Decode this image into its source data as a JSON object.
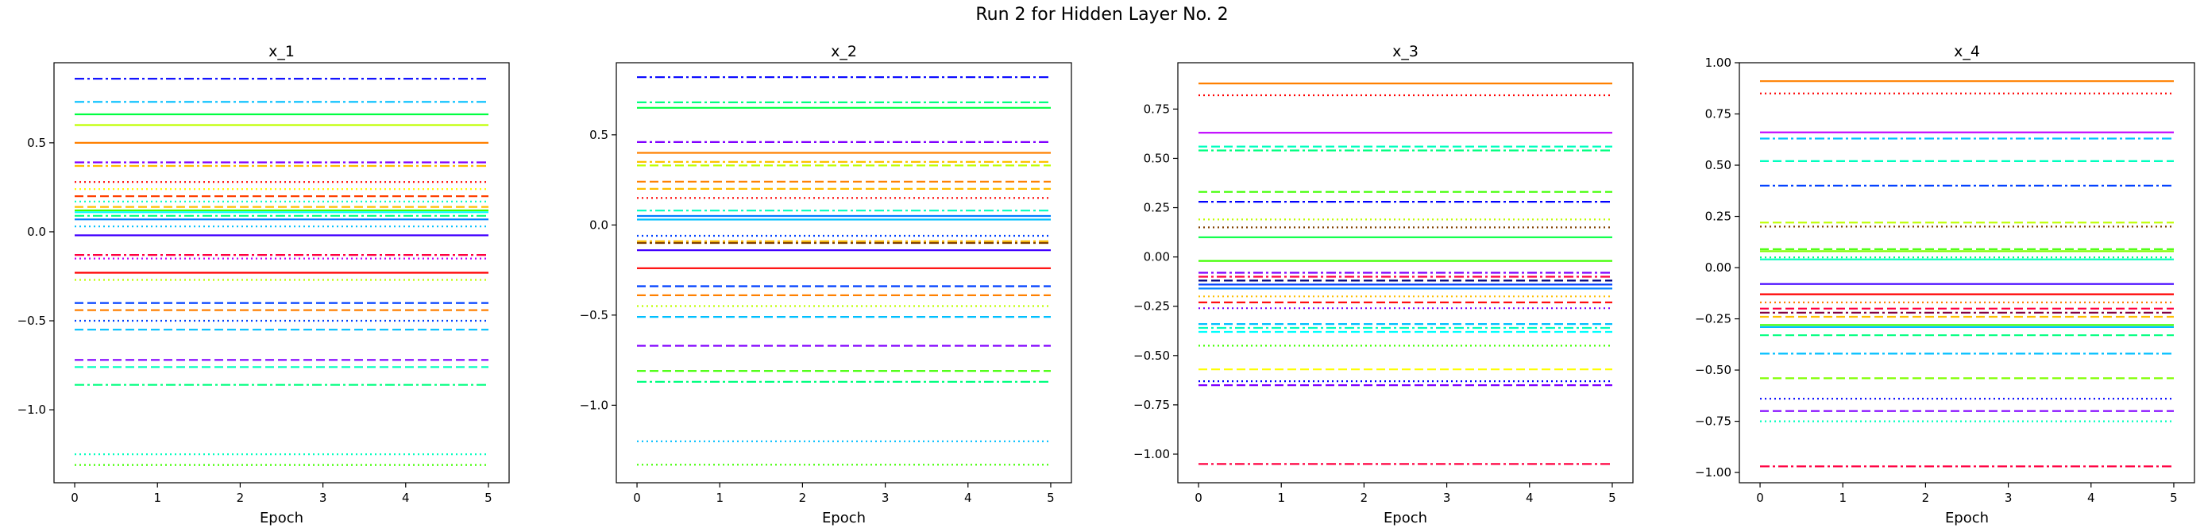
{
  "figure": {
    "suptitle": "Run 2 for Hidden Layer No. 2"
  },
  "chart_data": [
    {
      "type": "line",
      "title": "x_1",
      "xlabel": "Epoch",
      "ylabel": "",
      "xlim": [
        -0.25,
        5.25
      ],
      "ylim": [
        -1.41,
        0.95
      ],
      "xticks": [
        0,
        1,
        2,
        3,
        4,
        5
      ],
      "yticks": [
        -1.0,
        -0.5,
        0.0,
        0.5
      ],
      "ytick_labels": [
        "−1.0",
        "−0.5",
        "0.0",
        "0.5"
      ],
      "x": [
        0,
        1,
        2,
        3,
        4,
        5
      ],
      "series": [
        {
          "value": 0.86,
          "color": "#0000ff",
          "style": "dashdot"
        },
        {
          "value": 0.73,
          "color": "#00bfff",
          "style": "dashdot"
        },
        {
          "value": 0.66,
          "color": "#00ff40",
          "style": "solid"
        },
        {
          "value": 0.6,
          "color": "#bfff00",
          "style": "solid"
        },
        {
          "value": 0.5,
          "color": "#ff8000",
          "style": "solid"
        },
        {
          "value": 0.39,
          "color": "#8000ff",
          "style": "dashdot"
        },
        {
          "value": 0.37,
          "color": "#ffbf00",
          "style": "dashdot"
        },
        {
          "value": 0.28,
          "color": "#ff0000",
          "style": "dotted"
        },
        {
          "value": 0.24,
          "color": "#ffff00",
          "style": "dotted"
        },
        {
          "value": 0.2,
          "color": "#ff4000",
          "style": "dashed"
        },
        {
          "value": 0.17,
          "color": "#00ffbf",
          "style": "dotted"
        },
        {
          "value": 0.14,
          "color": "#ffbf00",
          "style": "dashed"
        },
        {
          "value": 0.12,
          "color": "#40ff00",
          "style": "solid"
        },
        {
          "value": 0.11,
          "color": "#00ffff",
          "style": "solid"
        },
        {
          "value": 0.09,
          "color": "#00ff80",
          "style": "dashdot"
        },
        {
          "value": 0.07,
          "color": "#0080ff",
          "style": "solid"
        },
        {
          "value": 0.03,
          "color": "#00bfff",
          "style": "dotted"
        },
        {
          "value": -0.02,
          "color": "#4000ff",
          "style": "solid"
        },
        {
          "value": -0.13,
          "color": "#ff0040",
          "style": "dashdot"
        },
        {
          "value": -0.15,
          "color": "#bf00ff",
          "style": "dotted"
        },
        {
          "value": -0.23,
          "color": "#ff0000",
          "style": "solid"
        },
        {
          "value": -0.27,
          "color": "#bfff00",
          "style": "dotted"
        },
        {
          "value": -0.4,
          "color": "#0040ff",
          "style": "dashed"
        },
        {
          "value": -0.44,
          "color": "#ff8000",
          "style": "dashed"
        },
        {
          "value": -0.5,
          "color": "#0040ff",
          "style": "dotted"
        },
        {
          "value": -0.55,
          "color": "#00bfff",
          "style": "dashed"
        },
        {
          "value": -0.72,
          "color": "#8000ff",
          "style": "dashed"
        },
        {
          "value": -0.76,
          "color": "#00ffbf",
          "style": "dashed"
        },
        {
          "value": -0.86,
          "color": "#00ff80",
          "style": "dashdot"
        },
        {
          "value": -1.25,
          "color": "#00ffbf",
          "style": "dotted"
        },
        {
          "value": -1.31,
          "color": "#40ff00",
          "style": "dotted"
        }
      ]
    },
    {
      "type": "line",
      "title": "x_2",
      "xlabel": "Epoch",
      "ylabel": "",
      "xlim": [
        -0.25,
        5.25
      ],
      "ylim": [
        -1.43,
        0.9
      ],
      "xticks": [
        0,
        1,
        2,
        3,
        4,
        5
      ],
      "yticks": [
        -1.0,
        -0.5,
        0.0,
        0.5
      ],
      "ytick_labels": [
        "−1.0",
        "−0.5",
        "0.0",
        "0.5"
      ],
      "x": [
        0,
        1,
        2,
        3,
        4,
        5
      ],
      "series": [
        {
          "value": 0.82,
          "color": "#0000ff",
          "style": "dashdot"
        },
        {
          "value": 0.68,
          "color": "#00ff80",
          "style": "dashdot"
        },
        {
          "value": 0.65,
          "color": "#00ff40",
          "style": "solid"
        },
        {
          "value": 0.46,
          "color": "#8000ff",
          "style": "dashdot"
        },
        {
          "value": 0.4,
          "color": "#ff8000",
          "style": "solid"
        },
        {
          "value": 0.35,
          "color": "#ffbf00",
          "style": "dashdot"
        },
        {
          "value": 0.33,
          "color": "#bfff00",
          "style": "dashed"
        },
        {
          "value": 0.24,
          "color": "#ff8000",
          "style": "dashed"
        },
        {
          "value": 0.2,
          "color": "#ffbf00",
          "style": "dashed"
        },
        {
          "value": 0.15,
          "color": "#ff0000",
          "style": "dotted"
        },
        {
          "value": 0.08,
          "color": "#00ffbf",
          "style": "dashdot"
        },
        {
          "value": 0.05,
          "color": "#0080ff",
          "style": "solid"
        },
        {
          "value": 0.03,
          "color": "#00bfff",
          "style": "solid"
        },
        {
          "value": -0.06,
          "color": "#0040ff",
          "style": "dotted"
        },
        {
          "value": -0.09,
          "color": "#ffbf00",
          "style": "dashdot"
        },
        {
          "value": -0.1,
          "color": "#804000",
          "style": "dashdot"
        },
        {
          "value": -0.14,
          "color": "#4000ff",
          "style": "solid"
        },
        {
          "value": -0.24,
          "color": "#ff0000",
          "style": "solid"
        },
        {
          "value": -0.34,
          "color": "#0040ff",
          "style": "dashed"
        },
        {
          "value": -0.39,
          "color": "#ff8000",
          "style": "dashed"
        },
        {
          "value": -0.45,
          "color": "#bfff00",
          "style": "dotted"
        },
        {
          "value": -0.51,
          "color": "#00bfff",
          "style": "dashed"
        },
        {
          "value": -0.67,
          "color": "#8000ff",
          "style": "dashed"
        },
        {
          "value": -0.81,
          "color": "#40ff00",
          "style": "dashed"
        },
        {
          "value": -0.87,
          "color": "#00ff80",
          "style": "dashdot"
        },
        {
          "value": -1.2,
          "color": "#00bfff",
          "style": "dotted"
        },
        {
          "value": -1.33,
          "color": "#40ff00",
          "style": "dotted"
        }
      ]
    },
    {
      "type": "line",
      "title": "x_3",
      "xlabel": "Epoch",
      "ylabel": "",
      "xlim": [
        -0.25,
        5.25
      ],
      "ylim": [
        -1.145,
        0.985
      ],
      "xticks": [
        0,
        1,
        2,
        3,
        4,
        5
      ],
      "yticks": [
        -1.0,
        -0.75,
        -0.5,
        -0.25,
        0.0,
        0.25,
        0.5,
        0.75
      ],
      "ytick_labels": [
        "−1.00",
        "−0.75",
        "−0.50",
        "−0.25",
        "0.00",
        "0.25",
        "0.50",
        "0.75"
      ],
      "x": [
        0,
        1,
        2,
        3,
        4,
        5
      ],
      "series": [
        {
          "value": 0.88,
          "color": "#ff8000",
          "style": "solid"
        },
        {
          "value": 0.82,
          "color": "#ff0000",
          "style": "dotted"
        },
        {
          "value": 0.63,
          "color": "#bf00ff",
          "style": "solid"
        },
        {
          "value": 0.56,
          "color": "#00ffbf",
          "style": "dashed"
        },
        {
          "value": 0.54,
          "color": "#00ff80",
          "style": "dashdot"
        },
        {
          "value": 0.33,
          "color": "#40ff00",
          "style": "dashed"
        },
        {
          "value": 0.28,
          "color": "#0000ff",
          "style": "dashdot"
        },
        {
          "value": 0.19,
          "color": "#bfff00",
          "style": "dotted"
        },
        {
          "value": 0.15,
          "color": "#804000",
          "style": "dotted"
        },
        {
          "value": 0.1,
          "color": "#00ff40",
          "style": "solid"
        },
        {
          "value": -0.02,
          "color": "#40ff00",
          "style": "solid"
        },
        {
          "value": -0.08,
          "color": "#8000ff",
          "style": "dashdot"
        },
        {
          "value": -0.1,
          "color": "#ff0040",
          "style": "dashdot"
        },
        {
          "value": -0.12,
          "color": "#000080",
          "style": "dashed"
        },
        {
          "value": -0.14,
          "color": "#0040ff",
          "style": "solid"
        },
        {
          "value": -0.16,
          "color": "#0080ff",
          "style": "solid"
        },
        {
          "value": -0.2,
          "color": "#ffbf00",
          "style": "dotted"
        },
        {
          "value": -0.23,
          "color": "#ff0000",
          "style": "dashed"
        },
        {
          "value": -0.26,
          "color": "#8000ff",
          "style": "dotted"
        },
        {
          "value": -0.34,
          "color": "#00bfff",
          "style": "dashed"
        },
        {
          "value": -0.36,
          "color": "#00ffbf",
          "style": "dashdot"
        },
        {
          "value": -0.38,
          "color": "#00ffff",
          "style": "dashed"
        },
        {
          "value": -0.45,
          "color": "#40ff00",
          "style": "dotted"
        },
        {
          "value": -0.57,
          "color": "#ffff00",
          "style": "dashed"
        },
        {
          "value": -0.63,
          "color": "#0000ff",
          "style": "dotted"
        },
        {
          "value": -0.65,
          "color": "#8000ff",
          "style": "dashed"
        },
        {
          "value": -1.05,
          "color": "#ff0040",
          "style": "dashdot"
        }
      ]
    },
    {
      "type": "line",
      "title": "x_4",
      "xlabel": "Epoch",
      "ylabel": "",
      "xlim": [
        -0.25,
        5.25
      ],
      "ylim": [
        -1.05,
        1.0
      ],
      "xticks": [
        0,
        1,
        2,
        3,
        4,
        5
      ],
      "yticks": [
        -1.0,
        -0.75,
        -0.5,
        -0.25,
        0.0,
        0.25,
        0.5,
        0.75,
        1.0
      ],
      "ytick_labels": [
        "−1.00",
        "−0.75",
        "−0.50",
        "−0.25",
        "0.00",
        "0.25",
        "0.50",
        "0.75",
        "1.00"
      ],
      "x": [
        0,
        1,
        2,
        3,
        4,
        5
      ],
      "series": [
        {
          "value": 0.91,
          "color": "#ff8000",
          "style": "solid"
        },
        {
          "value": 0.85,
          "color": "#ff0000",
          "style": "dotted"
        },
        {
          "value": 0.66,
          "color": "#bf00ff",
          "style": "solid"
        },
        {
          "value": 0.63,
          "color": "#00bfff",
          "style": "dashdot"
        },
        {
          "value": 0.52,
          "color": "#00ffbf",
          "style": "dashed"
        },
        {
          "value": 0.4,
          "color": "#0040ff",
          "style": "dashdot"
        },
        {
          "value": 0.22,
          "color": "#bfff00",
          "style": "dashed"
        },
        {
          "value": 0.2,
          "color": "#804000",
          "style": "dotted"
        },
        {
          "value": 0.09,
          "color": "#40ff00",
          "style": "dashed"
        },
        {
          "value": 0.08,
          "color": "#80ff00",
          "style": "solid"
        },
        {
          "value": 0.05,
          "color": "#00ff80",
          "style": "dotted"
        },
        {
          "value": 0.04,
          "color": "#00ffbf",
          "style": "solid"
        },
        {
          "value": -0.08,
          "color": "#4000ff",
          "style": "solid"
        },
        {
          "value": -0.13,
          "color": "#ff0000",
          "style": "solid"
        },
        {
          "value": -0.17,
          "color": "#ff8000",
          "style": "dotted"
        },
        {
          "value": -0.2,
          "color": "#ff0040",
          "style": "dashed"
        },
        {
          "value": -0.22,
          "color": "#800040",
          "style": "dashdot"
        },
        {
          "value": -0.24,
          "color": "#ffbf00",
          "style": "dashed"
        },
        {
          "value": -0.28,
          "color": "#40ff00",
          "style": "solid"
        },
        {
          "value": -0.29,
          "color": "#00bfff",
          "style": "solid"
        },
        {
          "value": -0.33,
          "color": "#00ff80",
          "style": "dashed"
        },
        {
          "value": -0.42,
          "color": "#00bfff",
          "style": "dashdot"
        },
        {
          "value": -0.54,
          "color": "#80ff00",
          "style": "dashed"
        },
        {
          "value": -0.64,
          "color": "#0000ff",
          "style": "dotted"
        },
        {
          "value": -0.7,
          "color": "#8000ff",
          "style": "dashed"
        },
        {
          "value": -0.75,
          "color": "#00ffbf",
          "style": "dotted"
        },
        {
          "value": -0.97,
          "color": "#ff0040",
          "style": "dashdot"
        }
      ]
    }
  ]
}
